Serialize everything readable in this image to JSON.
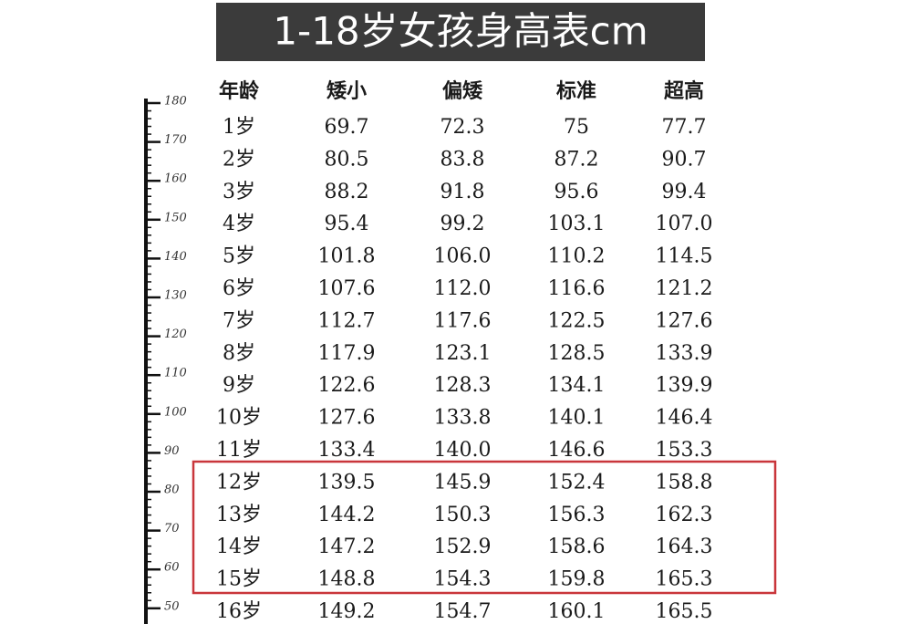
{
  "title": "1-18岁女孩身高表cm",
  "ruler": {
    "labels": [
      "180",
      "170",
      "160",
      "150",
      "140",
      "130",
      "120",
      "110",
      "100",
      "90",
      "80",
      "70",
      "60",
      "50"
    ]
  },
  "table": {
    "header": [
      "年龄",
      "矮小",
      "偏矮",
      "标准",
      "超高"
    ],
    "rows": [
      [
        "1岁",
        "69.7",
        "72.3",
        "75",
        "77.7"
      ],
      [
        "2岁",
        "80.5",
        "83.8",
        "87.2",
        "90.7"
      ],
      [
        "3岁",
        "88.2",
        "91.8",
        "95.6",
        "99.4"
      ],
      [
        "4岁",
        "95.4",
        "99.2",
        "103.1",
        "107.0"
      ],
      [
        "5岁",
        "101.8",
        "106.0",
        "110.2",
        "114.5"
      ],
      [
        "6岁",
        "107.6",
        "112.0",
        "116.6",
        "121.2"
      ],
      [
        "7岁",
        "112.7",
        "117.6",
        "122.5",
        "127.6"
      ],
      [
        "8岁",
        "117.9",
        "123.1",
        "128.5",
        "133.9"
      ],
      [
        "9岁",
        "122.6",
        "128.3",
        "134.1",
        "139.9"
      ],
      [
        "10岁",
        "127.6",
        "133.8",
        "140.1",
        "146.4"
      ],
      [
        "11岁",
        "133.4",
        "140.0",
        "146.6",
        "153.3"
      ],
      [
        "12岁",
        "139.5",
        "145.9",
        "152.4",
        "158.8"
      ],
      [
        "13岁",
        "144.2",
        "150.3",
        "156.3",
        "162.3"
      ],
      [
        "14岁",
        "147.2",
        "152.9",
        "158.6",
        "164.3"
      ],
      [
        "15岁",
        "148.8",
        "154.3",
        "159.8",
        "165.3"
      ],
      [
        "16岁",
        "149.2",
        "154.7",
        "160.1",
        "165.5"
      ]
    ]
  }
}
